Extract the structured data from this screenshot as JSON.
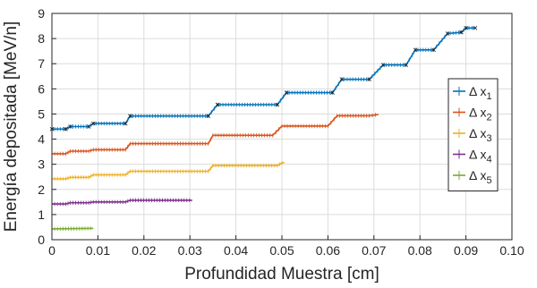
{
  "chart_data": {
    "type": "line",
    "title": "",
    "xlabel": "Profundidad Muestra [cm]",
    "ylabel": "Energía depositada [MeV/n]",
    "xlim": [
      0,
      0.1
    ],
    "ylim": [
      0,
      9
    ],
    "xticks": [
      "0",
      "0.01",
      "0.02",
      "0.03",
      "0.04",
      "0.05",
      "0.06",
      "0.07",
      "0.08",
      "0.09",
      "0.10"
    ],
    "yticks": [
      "0",
      "1",
      "2",
      "3",
      "4",
      "5",
      "6",
      "7",
      "8",
      "9"
    ],
    "grid": true,
    "legend_position": "right",
    "error_bars": true,
    "series": [
      {
        "name": "Δ x",
        "subscript": "1",
        "color": "#0072BD",
        "points": [
          [
            0,
            4.4
          ],
          [
            0.003,
            4.4
          ],
          [
            0.004,
            4.5
          ],
          [
            0.008,
            4.5
          ],
          [
            0.009,
            4.62
          ],
          [
            0.016,
            4.62
          ],
          [
            0.017,
            4.92
          ],
          [
            0.034,
            4.92
          ],
          [
            0.036,
            5.37
          ],
          [
            0.049,
            5.37
          ],
          [
            0.051,
            5.85
          ],
          [
            0.061,
            5.85
          ],
          [
            0.063,
            6.38
          ],
          [
            0.069,
            6.38
          ],
          [
            0.072,
            6.95
          ],
          [
            0.077,
            6.95
          ],
          [
            0.079,
            7.55
          ],
          [
            0.083,
            7.55
          ],
          [
            0.086,
            8.2
          ],
          [
            0.089,
            8.25
          ],
          [
            0.09,
            8.42
          ],
          [
            0.092,
            8.42
          ]
        ]
      },
      {
        "name": "Δ x",
        "subscript": "2",
        "color": "#D95319",
        "points": [
          [
            0,
            3.42
          ],
          [
            0.003,
            3.42
          ],
          [
            0.004,
            3.52
          ],
          [
            0.008,
            3.52
          ],
          [
            0.009,
            3.58
          ],
          [
            0.016,
            3.58
          ],
          [
            0.017,
            3.82
          ],
          [
            0.034,
            3.82
          ],
          [
            0.035,
            4.15
          ],
          [
            0.048,
            4.15
          ],
          [
            0.05,
            4.52
          ],
          [
            0.06,
            4.52
          ],
          [
            0.062,
            4.93
          ],
          [
            0.069,
            4.93
          ],
          [
            0.071,
            4.98
          ]
        ]
      },
      {
        "name": "Δ x",
        "subscript": "3",
        "color": "#EDB120",
        "points": [
          [
            0,
            2.42
          ],
          [
            0.003,
            2.42
          ],
          [
            0.004,
            2.48
          ],
          [
            0.008,
            2.48
          ],
          [
            0.009,
            2.58
          ],
          [
            0.016,
            2.58
          ],
          [
            0.017,
            2.72
          ],
          [
            0.034,
            2.72
          ],
          [
            0.035,
            2.95
          ],
          [
            0.049,
            2.95
          ],
          [
            0.05,
            3.05
          ],
          [
            0.0505,
            3.07
          ]
        ]
      },
      {
        "name": "Δ x",
        "subscript": "4",
        "color": "#7E2F8E",
        "points": [
          [
            0,
            1.42
          ],
          [
            0.003,
            1.42
          ],
          [
            0.004,
            1.47
          ],
          [
            0.008,
            1.47
          ],
          [
            0.009,
            1.5
          ],
          [
            0.016,
            1.5
          ],
          [
            0.017,
            1.57
          ],
          [
            0.0305,
            1.57
          ]
        ]
      },
      {
        "name": "Δ x",
        "subscript": "5",
        "color": "#77AC30",
        "points": [
          [
            0,
            0.43
          ],
          [
            0.009,
            0.45
          ]
        ]
      }
    ]
  }
}
